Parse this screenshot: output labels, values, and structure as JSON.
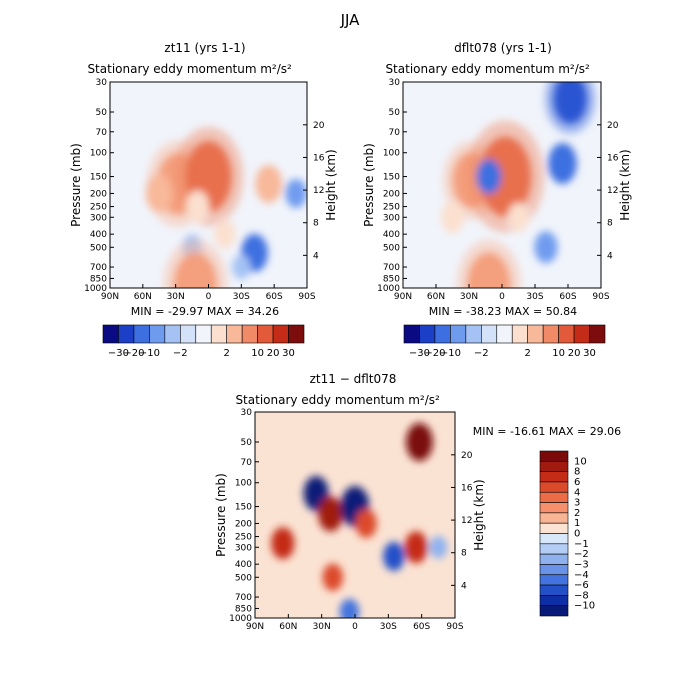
{
  "figure_title": "JJA",
  "chart_data": [
    {
      "type": "heatmap",
      "id": "zt11",
      "title": "zt11 (yrs 1-1)",
      "subtitle": "Stationary eddy momentum",
      "units": "m²/s²",
      "xlabel": "",
      "ylabel": "Pressure (mb)",
      "ylabel_right": "Height (km)",
      "xticks": [
        "90N",
        "60N",
        "30N",
        "0",
        "30S",
        "60S",
        "90S"
      ],
      "yticks": [
        "30",
        "50",
        "70",
        "100",
        "150",
        "200",
        "250",
        "300",
        "400",
        "500",
        "700",
        "850",
        "1000"
      ],
      "yticks_right": [
        "4",
        "8",
        "12",
        "16",
        "20"
      ],
      "ylog": true,
      "stats": "MIN = -29.97   MAX = 34.26",
      "min": -29.97,
      "max": 34.26,
      "features": [
        {
          "lat": 28,
          "p": 170,
          "value": 28
        },
        {
          "lat": 0,
          "p": 150,
          "value": 34
        },
        {
          "lat": 45,
          "p": 200,
          "value": 12
        },
        {
          "lat": 10,
          "p": 250,
          "value": 8
        },
        {
          "lat": -55,
          "p": 170,
          "value": 12
        },
        {
          "lat": -42,
          "p": 550,
          "value": -12
        },
        {
          "lat": 15,
          "p": 500,
          "value": -4
        },
        {
          "lat": -80,
          "p": 200,
          "value": -6
        },
        {
          "lat": -30,
          "p": 700,
          "value": -3
        },
        {
          "lat": -15,
          "p": 400,
          "value": 6
        },
        {
          "lat": 12,
          "p": 950,
          "value": 30
        }
      ]
    },
    {
      "type": "heatmap",
      "id": "dflt078",
      "title": "dflt078 (yrs 1-1)",
      "subtitle": "Stationary eddy momentum",
      "units": "m²/s²",
      "xlabel": "",
      "ylabel": "Pressure (mb)",
      "ylabel_right": "Height (km)",
      "xticks": [
        "90N",
        "60N",
        "30N",
        "0",
        "30S",
        "60S",
        "90S"
      ],
      "yticks": [
        "30",
        "50",
        "70",
        "100",
        "150",
        "200",
        "250",
        "300",
        "400",
        "500",
        "700",
        "850",
        "1000"
      ],
      "yticks_right": [
        "4",
        "8",
        "12",
        "16",
        "20"
      ],
      "ylog": true,
      "stats": "MIN = -38.23   MAX = 50.84",
      "min": -38.23,
      "max": 50.84,
      "features": [
        {
          "lat": 28,
          "p": 160,
          "value": 24
        },
        {
          "lat": -3,
          "p": 150,
          "value": 40
        },
        {
          "lat": 12,
          "p": 150,
          "value": -10
        },
        {
          "lat": -62,
          "p": 40,
          "value": -20
        },
        {
          "lat": -55,
          "p": 120,
          "value": -14
        },
        {
          "lat": -40,
          "p": 500,
          "value": -8
        },
        {
          "lat": 45,
          "p": 300,
          "value": 8
        },
        {
          "lat": -15,
          "p": 300,
          "value": 6
        },
        {
          "lat": 12,
          "p": 950,
          "value": 30
        }
      ]
    },
    {
      "type": "heatmap",
      "id": "diff",
      "title": "zt11 − dflt078",
      "subtitle": "Stationary eddy momentum",
      "units": "m²/s²",
      "xlabel": "",
      "ylabel": "Pressure (mb)",
      "ylabel_right": "Height (km)",
      "xticks": [
        "90N",
        "60N",
        "30N",
        "0",
        "30S",
        "60S",
        "90S"
      ],
      "yticks": [
        "30",
        "50",
        "70",
        "100",
        "150",
        "200",
        "250",
        "300",
        "400",
        "500",
        "700",
        "850",
        "1000"
      ],
      "yticks_right": [
        "4",
        "8",
        "12",
        "16",
        "20"
      ],
      "ylog": true,
      "stats": "MIN = -16.61   MAX =  29.06",
      "min": -16.61,
      "max": 29.06,
      "features": [
        {
          "lat": 65,
          "p": 280,
          "value": 8
        },
        {
          "lat": 35,
          "p": 120,
          "value": -10
        },
        {
          "lat": 22,
          "p": 170,
          "value": 10
        },
        {
          "lat": 20,
          "p": 500,
          "value": 5
        },
        {
          "lat": 0,
          "p": 150,
          "value": -14
        },
        {
          "lat": -10,
          "p": 200,
          "value": 6
        },
        {
          "lat": -35,
          "p": 350,
          "value": -6
        },
        {
          "lat": -58,
          "p": 50,
          "value": 12
        },
        {
          "lat": -55,
          "p": 300,
          "value": 8
        },
        {
          "lat": -75,
          "p": 300,
          "value": -2
        },
        {
          "lat": 5,
          "p": 900,
          "value": -4
        }
      ]
    }
  ],
  "colorbar_top": {
    "labels": [
      "−30",
      "−20",
      "−10",
      "−2",
      "2",
      "10",
      "20",
      "30"
    ],
    "levels": [
      -30,
      -20,
      -10,
      -5,
      -2,
      2,
      5,
      10,
      20,
      30
    ],
    "colors": [
      "#0a0a82",
      "#1b3fc7",
      "#3d6fe0",
      "#6f9bef",
      "#a4c2f4",
      "#d3e2f8",
      "#f1f4fb",
      "#fbe0cf",
      "#f8b89a",
      "#f08a67",
      "#e25a3a",
      "#c42c17",
      "#7d0c0c"
    ]
  },
  "colorbar_diff": {
    "labels": [
      "10",
      "8",
      "6",
      "4",
      "3",
      "2",
      "1",
      "0",
      "−1",
      "−2",
      "−3",
      "−4",
      "−6",
      "−8",
      "−10"
    ],
    "levels": [
      10,
      8,
      6,
      4,
      3,
      2,
      1,
      0,
      -1,
      -2,
      -3,
      -4,
      -6,
      -8,
      -10
    ],
    "colors": [
      "#7a0a0a",
      "#a01a10",
      "#c42c17",
      "#dc4a2c",
      "#ec6c48",
      "#f58f6c",
      "#f8b596",
      "#fbe3d3",
      "#d9e7fa",
      "#b4cdf5",
      "#8fb2ef",
      "#6a93e7",
      "#4273de",
      "#2350c8",
      "#0e2ea6",
      "#081a78"
    ]
  }
}
